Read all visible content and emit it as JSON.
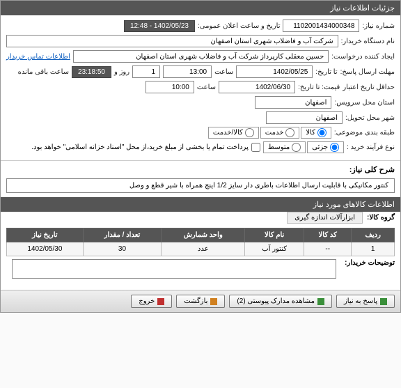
{
  "header": {
    "title": "جزئیات اطلاعات نیاز"
  },
  "fields": {
    "need_no_label": "شماره نیاز:",
    "need_no": "1102001434000348",
    "public_datetime_label": "تاریخ و ساعت اعلان عمومی:",
    "public_datetime": "1402/05/23 - 12:48",
    "buyer_org_label": "نام دستگاه خریدار:",
    "buyer_org": "شرکت آب و فاضلاب شهری استان اصفهان",
    "creator_label": "ایجاد کننده درخواست:",
    "creator": "حسین معقلی کارپرداز شرکت آب و فاضلاب شهری استان اصفهان",
    "contact_link": "اطلاعات تماس خریدار",
    "reply_deadline_label": "مهلت ارسال پاسخ:",
    "reply_deadline_suffix": "تا تاریخ:",
    "reply_date": "1402/05/25",
    "reply_time_label": "ساعت",
    "reply_time": "13:00",
    "days_label": "روز و",
    "days": "1",
    "countdown": "23:18:50",
    "remain_label": "ساعت باقی مانده",
    "credit_deadline_label": "حداقل تاریخ اعتبار",
    "credit_deadline_suffix": "قیمت: تا تاریخ:",
    "credit_date": "1402/06/30",
    "credit_time_label": "ساعت",
    "credit_time": "10:00",
    "city_service_label": "استان محل سرویس:",
    "city_service": "اصفهان",
    "city_delivery_label": "شهر محل تحویل:",
    "city_delivery": "اصفهان",
    "topic_class_label": "طبقه بندی موضوعی:",
    "topic_kala": "کالا",
    "topic_service": "خدمت",
    "topic_both": "کالا/خدمت",
    "purchase_type_label": "نوع فرآیند خرید :",
    "pt_minor": "جزئی",
    "pt_medium": "متوسط",
    "payment_note": "پرداخت تمام یا بخشی از مبلغ خرید،از محل \"اسناد خزانه اسلامی\" خواهد بود.",
    "need_desc_label": "شرح کلی نیاز:",
    "need_desc": "کنتور مکانیکی با قابلیت ارسال اطلاعات باطری دار سایز 1/2 اینچ همراه با شیر قطع و وصل",
    "items_header": "اطلاعات کالاهای مورد نیاز",
    "group_label": "گروه کالا:",
    "group_value": "ابزارآلات اندازه گیری"
  },
  "table": {
    "cols": [
      "ردیف",
      "کد کالا",
      "نام کالا",
      "واحد شمارش",
      "تعداد / مقدار",
      "تاریخ نیاز"
    ],
    "rows": [
      [
        "1",
        "--",
        "کنتور آب",
        "عدد",
        "30",
        "1402/05/30"
      ]
    ]
  },
  "notes_label": "توضیحات خریدار:",
  "buttons": {
    "reply": "پاسخ به نیاز",
    "attach": "مشاهده مدارک پیوستی (2)",
    "back": "بازگشت",
    "exit": "خروج"
  }
}
